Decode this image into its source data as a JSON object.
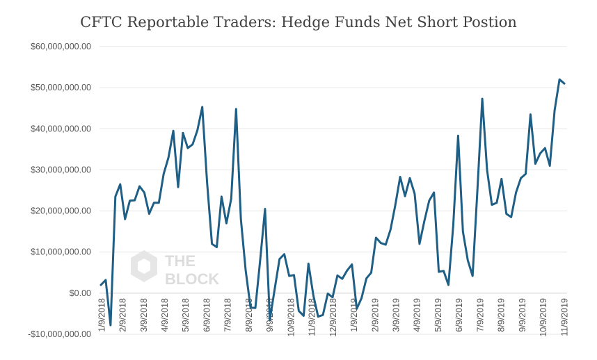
{
  "chart_data": {
    "type": "line",
    "title": "CFTC Reportable Traders: Hedge Funds Net Short Postion",
    "xlabel": "",
    "ylabel": "",
    "ylim": [
      -10000000,
      60000000
    ],
    "yticks": [
      {
        "value": -10000000,
        "label": "-$10,000,000.00"
      },
      {
        "value": 0,
        "label": "$0.00"
      },
      {
        "value": 10000000,
        "label": "$10,000,000.00"
      },
      {
        "value": 20000000,
        "label": "$20,000,000.00"
      },
      {
        "value": 30000000,
        "label": "$30,000,000.00"
      },
      {
        "value": 40000000,
        "label": "$40,000,000.00"
      },
      {
        "value": 50000000,
        "label": "$50,000,000.00"
      },
      {
        "value": 60000000,
        "label": "$60,000,000.00"
      }
    ],
    "xticks": [
      "1/9/2018",
      "2/9/2018",
      "3/9/2018",
      "4/9/2018",
      "5/9/2018",
      "6/9/2018",
      "7/9/2018",
      "8/9/2018",
      "9/9/2018",
      "10/9/2018",
      "11/9/2018",
      "12/9/2018",
      "1/9/2019",
      "2/9/2019",
      "3/9/2019",
      "4/9/2019",
      "5/9/2019",
      "6/9/2019",
      "7/9/2019",
      "8/9/2019",
      "9/9/2019",
      "10/9/2019",
      "11/9/2019"
    ],
    "grid": true,
    "line_color": "#1f5f85",
    "series": [
      {
        "values": [
          2000000,
          3200000,
          -7800000,
          23500000,
          26500000,
          18000000,
          22500000,
          22600000,
          26000000,
          24500000,
          19300000,
          22000000,
          22000000,
          29000000,
          33000000,
          39500000,
          25800000,
          39000000,
          35300000,
          36200000,
          39700000,
          45300000,
          27000000,
          12000000,
          11200000,
          23500000,
          17000000,
          23000000,
          44800000,
          18000000,
          5500000,
          -3500000,
          -3600000,
          8000000,
          20500000,
          -6500000,
          1000000,
          8300000,
          9500000,
          4200000,
          4400000,
          -4300000,
          -5500000,
          7200000,
          -500000,
          -5700000,
          -5300000,
          -100000,
          -1000000,
          4300000,
          3500000,
          5500000,
          7000000,
          -3800000,
          -1200000,
          3600000,
          5000000,
          13500000,
          12200000,
          11800000,
          15500000,
          21500000,
          28300000,
          23600000,
          28000000,
          24200000,
          12000000,
          17500000,
          22500000,
          24500000,
          5200000,
          5400000,
          2000000,
          16500000,
          38300000,
          15000000,
          8000000,
          4200000,
          25000000,
          47300000,
          30000000,
          21500000,
          22000000,
          27800000,
          19300000,
          18500000,
          24500000,
          28000000,
          29000000,
          43500000,
          31500000,
          34000000,
          35300000,
          31000000,
          44500000,
          52000000,
          51000000
        ]
      }
    ],
    "watermark": [
      "THE",
      "BLOCK"
    ]
  }
}
